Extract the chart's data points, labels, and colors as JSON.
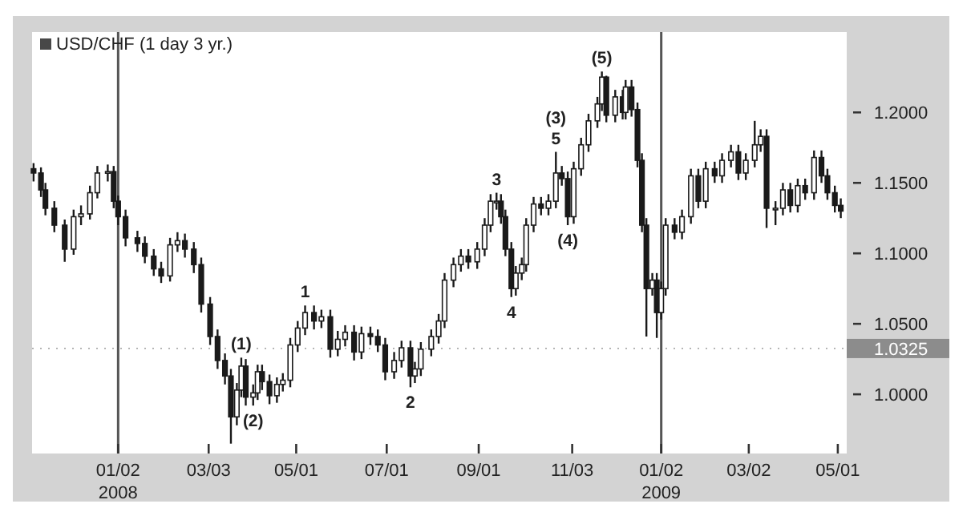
{
  "chart_data": {
    "type": "candlestick",
    "x": [
      "2007-11-06",
      "2007-11-11",
      "2007-11-14",
      "2007-11-20",
      "2007-11-27",
      "2007-12-03",
      "2007-12-08",
      "2007-12-14",
      "2007-12-19",
      "2007-12-26",
      "2007-12-30",
      "2008-01-02",
      "2008-01-07",
      "2008-01-15",
      "2008-01-20",
      "2008-01-26",
      "2008-01-31",
      "2008-02-06",
      "2008-02-11",
      "2008-02-16",
      "2008-02-22",
      "2008-02-27",
      "2008-03-04",
      "2008-03-09",
      "2008-03-14",
      "2008-03-18",
      "2008-03-22",
      "2008-03-25",
      "2008-03-28",
      "2008-04-02",
      "2008-04-05",
      "2008-04-08",
      "2008-04-13",
      "2008-04-18",
      "2008-04-22",
      "2008-04-27",
      "2008-05-02",
      "2008-05-07",
      "2008-05-13",
      "2008-05-18",
      "2008-05-24",
      "2008-05-29",
      "2008-06-03",
      "2008-06-09",
      "2008-06-14",
      "2008-06-20",
      "2008-06-25",
      "2008-06-30",
      "2008-07-06",
      "2008-07-11",
      "2008-07-17",
      "2008-07-20",
      "2008-07-24",
      "2008-07-31",
      "2008-08-05",
      "2008-08-09",
      "2008-08-15",
      "2008-08-20",
      "2008-08-25",
      "2008-08-31",
      "2008-09-05",
      "2008-09-09",
      "2008-09-13",
      "2008-09-16",
      "2008-09-19",
      "2008-09-23",
      "2008-09-26",
      "2008-09-30",
      "2008-10-03",
      "2008-10-08",
      "2008-10-13",
      "2008-10-18",
      "2008-10-23",
      "2008-10-27",
      "2008-10-31",
      "2008-11-04",
      "2008-11-09",
      "2008-11-14",
      "2008-11-20",
      "2008-11-23",
      "2008-11-26",
      "2008-12-02",
      "2008-12-07",
      "2008-12-09",
      "2008-12-13",
      "2008-12-17",
      "2008-12-20",
      "2008-12-23",
      "2008-12-27",
      "2008-12-30",
      "2009-01-02",
      "2009-01-05",
      "2009-01-11",
      "2009-01-16",
      "2009-01-22",
      "2009-01-27",
      "2009-02-01",
      "2009-02-07",
      "2009-02-12",
      "2009-02-18",
      "2009-02-23",
      "2009-02-28",
      "2009-03-06",
      "2009-03-10",
      "2009-03-14",
      "2009-03-20",
      "2009-03-25",
      "2009-03-30",
      "2009-04-04",
      "2009-04-09",
      "2009-04-15",
      "2009-04-20",
      "2009-04-24",
      "2009-04-29",
      "2009-05-03"
    ],
    "series": [
      {
        "name": "USD/CHF (1 day 3 yr.)",
        "color": "#1a1a1a",
        "ohlc": [
          [
            1.16,
            1.164,
            1.151,
            1.157
          ],
          [
            1.157,
            1.161,
            1.14,
            1.145
          ],
          [
            1.145,
            1.15,
            1.127,
            1.132
          ],
          [
            1.132,
            1.137,
            1.115,
            1.12
          ],
          [
            1.12,
            1.124,
            1.094,
            1.103
          ],
          [
            1.103,
            1.131,
            1.099,
            1.126
          ],
          [
            1.126,
            1.134,
            1.12,
            1.128
          ],
          [
            1.128,
            1.148,
            1.124,
            1.143
          ],
          [
            1.143,
            1.162,
            1.139,
            1.157
          ],
          [
            1.157,
            1.163,
            1.151,
            1.158
          ],
          [
            1.158,
            1.162,
            1.132,
            1.137
          ],
          [
            1.137,
            1.141,
            1.12,
            1.126
          ],
          [
            1.126,
            1.131,
            1.105,
            1.111
          ],
          [
            1.111,
            1.116,
            1.101,
            1.107
          ],
          [
            1.107,
            1.112,
            1.093,
            1.098
          ],
          [
            1.098,
            1.103,
            1.084,
            1.089
          ],
          [
            1.089,
            1.094,
            1.079,
            1.084
          ],
          [
            1.084,
            1.111,
            1.08,
            1.106
          ],
          [
            1.106,
            1.115,
            1.101,
            1.109
          ],
          [
            1.109,
            1.114,
            1.097,
            1.103
          ],
          [
            1.103,
            1.108,
            1.086,
            1.092
          ],
          [
            1.092,
            1.097,
            1.058,
            1.064
          ],
          [
            1.064,
            1.069,
            1.035,
            1.041
          ],
          [
            1.041,
            1.046,
            1.018,
            1.024
          ],
          [
            1.024,
            1.029,
            1.007,
            1.013
          ],
          [
            1.013,
            1.018,
            0.965,
            0.984
          ],
          [
            0.984,
            1.008,
            0.978,
            1.003
          ],
          [
            1.003,
            1.026,
            0.998,
            1.02
          ],
          [
            1.02,
            1.025,
            0.992,
            0.998
          ],
          [
            0.998,
            1.007,
            0.992,
            1.001
          ],
          [
            1.001,
            1.021,
            0.996,
            1.016
          ],
          [
            1.016,
            1.021,
            1.003,
            1.009
          ],
          [
            1.009,
            1.014,
            0.993,
            0.999
          ],
          [
            0.999,
            1.012,
            0.994,
            1.007
          ],
          [
            1.007,
            1.015,
            1.002,
            1.01
          ],
          [
            1.01,
            1.04,
            1.005,
            1.035
          ],
          [
            1.035,
            1.052,
            1.03,
            1.047
          ],
          [
            1.047,
            1.063,
            1.042,
            1.058
          ],
          [
            1.058,
            1.063,
            1.046,
            1.052
          ],
          [
            1.052,
            1.06,
            1.047,
            1.055
          ],
          [
            1.055,
            1.06,
            1.026,
            1.032
          ],
          [
            1.032,
            1.045,
            1.027,
            1.039
          ],
          [
            1.039,
            1.049,
            1.034,
            1.044
          ],
          [
            1.044,
            1.049,
            1.024,
            1.03
          ],
          [
            1.03,
            1.048,
            1.025,
            1.043
          ],
          [
            1.043,
            1.048,
            1.035,
            1.041
          ],
          [
            1.041,
            1.046,
            1.03,
            1.035
          ],
          [
            1.035,
            1.04,
            1.01,
            1.016
          ],
          [
            1.016,
            1.03,
            1.011,
            1.024
          ],
          [
            1.024,
            1.038,
            1.019,
            1.033
          ],
          [
            1.033,
            1.038,
            1.005,
            1.013
          ],
          [
            1.013,
            1.023,
            1.008,
            1.018
          ],
          [
            1.018,
            1.037,
            1.013,
            1.032
          ],
          [
            1.032,
            1.046,
            1.027,
            1.041
          ],
          [
            1.041,
            1.057,
            1.036,
            1.052
          ],
          [
            1.052,
            1.086,
            1.047,
            1.081
          ],
          [
            1.081,
            1.097,
            1.076,
            1.092
          ],
          [
            1.092,
            1.103,
            1.087,
            1.098
          ],
          [
            1.098,
            1.103,
            1.089,
            1.094
          ],
          [
            1.094,
            1.108,
            1.089,
            1.103
          ],
          [
            1.103,
            1.125,
            1.098,
            1.12
          ],
          [
            1.12,
            1.142,
            1.115,
            1.137
          ],
          [
            1.137,
            1.143,
            1.131,
            1.137
          ],
          [
            1.137,
            1.142,
            1.121,
            1.126
          ],
          [
            1.126,
            1.131,
            1.098,
            1.103
          ],
          [
            1.103,
            1.108,
            1.069,
            1.075
          ],
          [
            1.075,
            1.091,
            1.07,
            1.086
          ],
          [
            1.086,
            1.097,
            1.081,
            1.092
          ],
          [
            1.092,
            1.125,
            1.087,
            1.12
          ],
          [
            1.12,
            1.14,
            1.115,
            1.135
          ],
          [
            1.135,
            1.14,
            1.127,
            1.132
          ],
          [
            1.132,
            1.142,
            1.127,
            1.137
          ],
          [
            1.137,
            1.172,
            1.132,
            1.157
          ],
          [
            1.157,
            1.162,
            1.148,
            1.153
          ],
          [
            1.153,
            1.158,
            1.12,
            1.126
          ],
          [
            1.126,
            1.165,
            1.121,
            1.16
          ],
          [
            1.16,
            1.182,
            1.155,
            1.177
          ],
          [
            1.177,
            1.199,
            1.172,
            1.194
          ],
          [
            1.194,
            1.211,
            1.189,
            1.206
          ],
          [
            1.206,
            1.229,
            1.201,
            1.225
          ],
          [
            1.225,
            1.226,
            1.193,
            1.198
          ],
          [
            1.198,
            1.216,
            1.193,
            1.211
          ],
          [
            1.211,
            1.216,
            1.195,
            1.2
          ],
          [
            1.2,
            1.223,
            1.195,
            1.218
          ],
          [
            1.218,
            1.223,
            1.197,
            1.202
          ],
          [
            1.202,
            1.207,
            1.161,
            1.166
          ],
          [
            1.166,
            1.171,
            1.115,
            1.12
          ],
          [
            1.12,
            1.125,
            1.041,
            1.075
          ],
          [
            1.075,
            1.086,
            1.07,
            1.081
          ],
          [
            1.081,
            1.086,
            1.04,
            1.058
          ],
          [
            1.058,
            1.08,
            1.053,
            1.075
          ],
          [
            1.075,
            1.125,
            1.07,
            1.12
          ],
          [
            1.12,
            1.125,
            1.11,
            1.115
          ],
          [
            1.115,
            1.131,
            1.11,
            1.126
          ],
          [
            1.126,
            1.16,
            1.121,
            1.155
          ],
          [
            1.155,
            1.16,
            1.132,
            1.137
          ],
          [
            1.137,
            1.165,
            1.132,
            1.16
          ],
          [
            1.16,
            1.165,
            1.15,
            1.155
          ],
          [
            1.155,
            1.171,
            1.15,
            1.166
          ],
          [
            1.166,
            1.177,
            1.161,
            1.172
          ],
          [
            1.172,
            1.177,
            1.152,
            1.157
          ],
          [
            1.157,
            1.171,
            1.152,
            1.166
          ],
          [
            1.166,
            1.194,
            1.161,
            1.177
          ],
          [
            1.177,
            1.188,
            1.172,
            1.183
          ],
          [
            1.183,
            1.188,
            1.118,
            1.132
          ],
          [
            1.132,
            1.137,
            1.12,
            1.132
          ],
          [
            1.132,
            1.15,
            1.127,
            1.145
          ],
          [
            1.145,
            1.15,
            1.129,
            1.134
          ],
          [
            1.134,
            1.153,
            1.129,
            1.148
          ],
          [
            1.148,
            1.153,
            1.138,
            1.143
          ],
          [
            1.143,
            1.173,
            1.138,
            1.168
          ],
          [
            1.168,
            1.173,
            1.15,
            1.155
          ],
          [
            1.155,
            1.16,
            1.138,
            1.143
          ],
          [
            1.143,
            1.148,
            1.129,
            1.134
          ],
          [
            1.134,
            1.139,
            1.125,
            1.13
          ]
        ]
      }
    ],
    "xlim": [
      "2007-11-05",
      "2009-05-07"
    ],
    "xticks": [
      {
        "value": "2008-01-02",
        "label": "01/02\n2008"
      },
      {
        "value": "2008-03-03",
        "label": "03/03"
      },
      {
        "value": "2008-05-01",
        "label": "05/01"
      },
      {
        "value": "2008-07-01",
        "label": "07/01"
      },
      {
        "value": "2008-09-01",
        "label": "09/01"
      },
      {
        "value": "2008-11-03",
        "label": "11/03"
      },
      {
        "value": "2009-01-02",
        "label": "01/02\n2009"
      },
      {
        "value": "2009-03-02",
        "label": "03/02"
      },
      {
        "value": "2009-05-01",
        "label": "05/01"
      }
    ],
    "ylim": [
      0.958,
      1.257
    ],
    "yticks": [
      {
        "value": 1.0,
        "label": "1.0000"
      },
      {
        "value": 1.05,
        "label": "1.0500"
      },
      {
        "value": 1.1,
        "label": "1.1000"
      },
      {
        "value": 1.15,
        "label": "1.1500"
      },
      {
        "value": 1.2,
        "label": "1.2000"
      }
    ],
    "ref_lines": [
      {
        "axis": "x",
        "value": "2008-01-02",
        "color": "#555555"
      },
      {
        "axis": "x",
        "value": "2009-01-02",
        "color": "#555555"
      },
      {
        "axis": "y",
        "value": 1.0325,
        "label": "1.0325",
        "color": "#8c8c8c"
      }
    ],
    "annotations": [
      {
        "text": "(1)",
        "x": "2008-03-25",
        "y": 1.026
      },
      {
        "text": "(2)",
        "x": "2008-04-02",
        "y": 0.992
      },
      {
        "text": "1",
        "x": "2008-05-07",
        "y": 1.063
      },
      {
        "text": "2",
        "x": "2008-07-17",
        "y": 1.005
      },
      {
        "text": "3",
        "x": "2008-09-13",
        "y": 1.143
      },
      {
        "text": "4",
        "x": "2008-09-23",
        "y": 1.069
      },
      {
        "text": "5",
        "x": "2008-10-23",
        "y": 1.172
      },
      {
        "text": "(3)",
        "x": "2008-10-23",
        "y": 1.172
      },
      {
        "text": "(4)",
        "x": "2008-10-31",
        "y": 1.12
      },
      {
        "text": "(5)",
        "x": "2008-11-23",
        "y": 1.229
      }
    ],
    "legend": "top left",
    "grid": false
  }
}
